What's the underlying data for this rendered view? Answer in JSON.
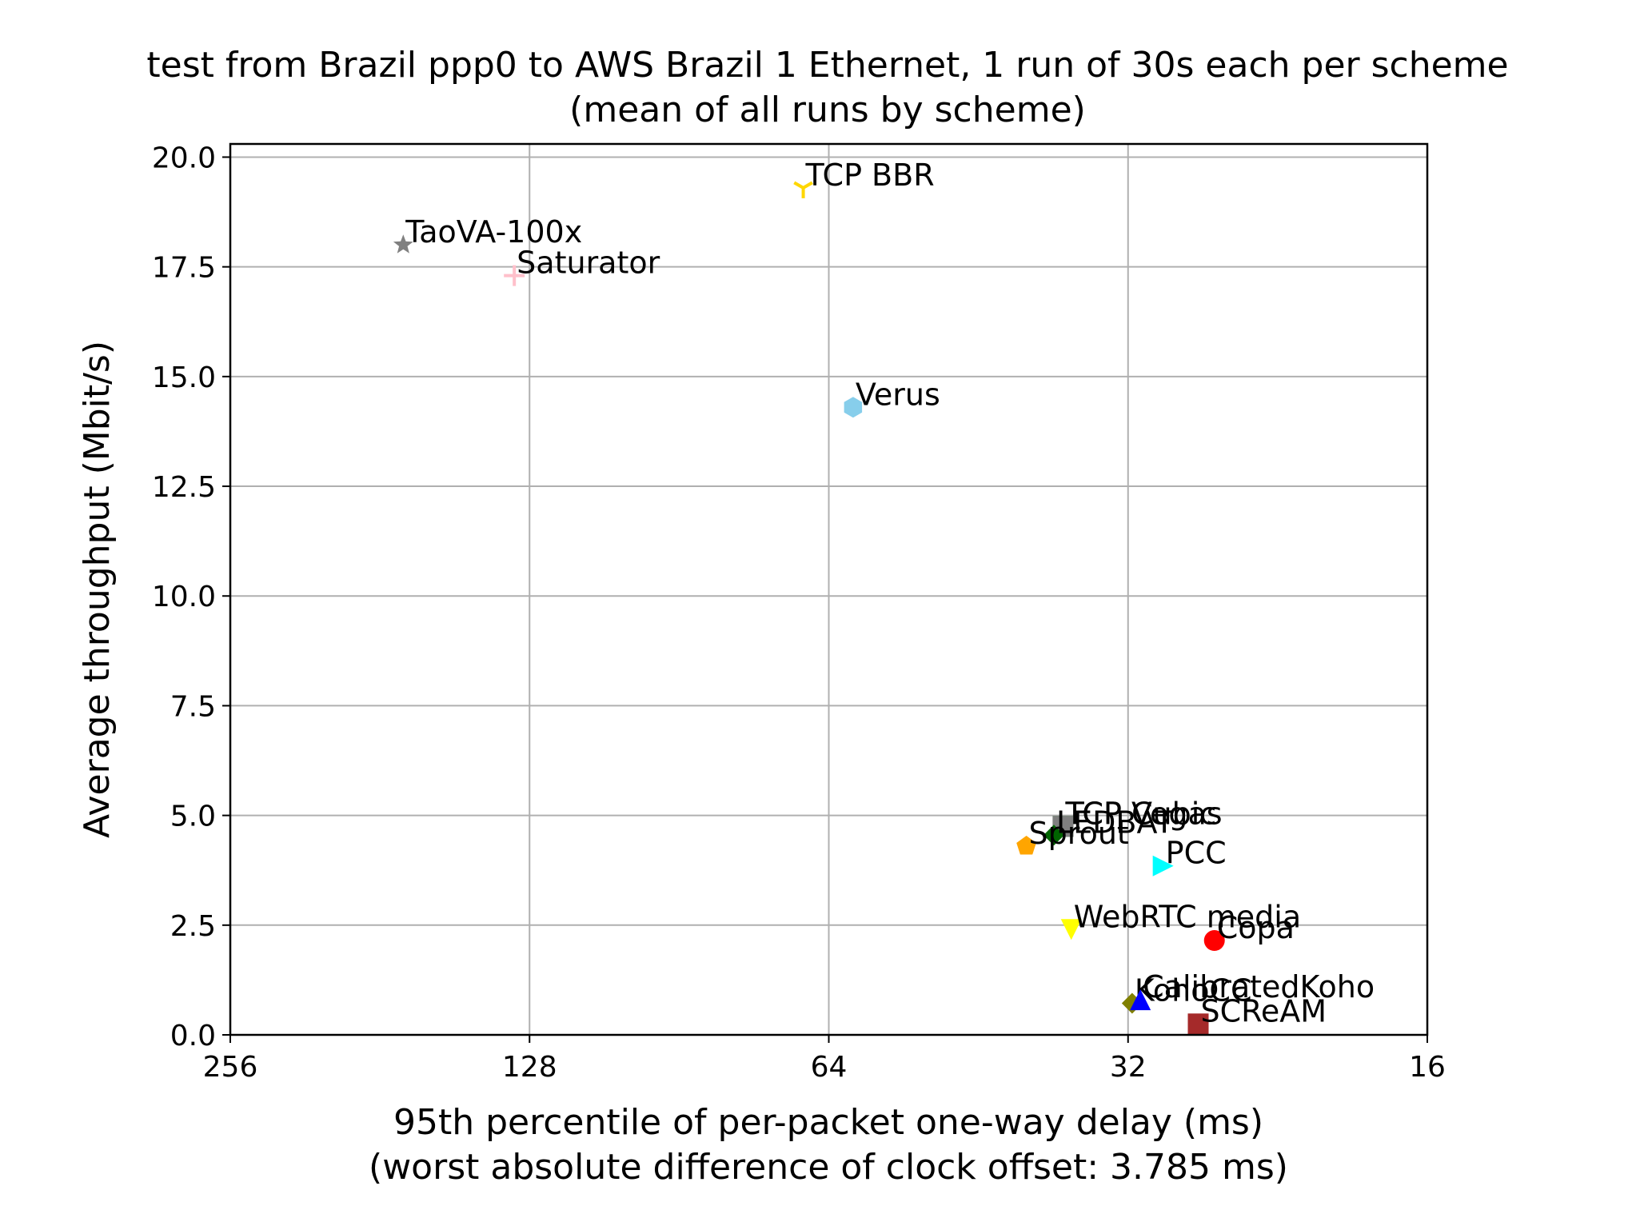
{
  "chart_data": {
    "type": "scatter",
    "title": "test from Brazil ppp0 to AWS Brazil 1 Ethernet, 1 run of 30s each per scheme",
    "subtitle": "(mean of all runs by scheme)",
    "xlabel": "95th percentile of per-packet one-way delay (ms)",
    "xlabel_sub": "(worst absolute difference of clock offset: 3.785 ms)",
    "ylabel": "Average throughput (Mbit/s)",
    "x_scale": "log2",
    "x_inverted": true,
    "xlim": [
      256,
      16
    ],
    "ylim": [
      0,
      20.3
    ],
    "x_ticks": [
      256,
      128,
      64,
      32,
      16
    ],
    "x_tick_labels": [
      "256",
      "128",
      "64",
      "32",
      "16"
    ],
    "y_ticks": [
      0,
      2.5,
      5,
      7.5,
      10,
      12.5,
      15,
      17.5,
      20
    ],
    "y_tick_labels": [
      "0.0",
      "2.5",
      "5.0",
      "7.5",
      "10.0",
      "12.5",
      "15.0",
      "17.5",
      "20.0"
    ],
    "grid": true,
    "points": [
      {
        "label": "TCP BBR",
        "x": 67.9,
        "y": 19.3,
        "color": "#FFD700",
        "marker": "tri"
      },
      {
        "label": "TaoVA-100x",
        "x": 171.5,
        "y": 18.0,
        "color": "#808080",
        "marker": "star"
      },
      {
        "label": "Saturator",
        "x": 132.6,
        "y": 17.3,
        "color": "#FFC0CB",
        "marker": "plus"
      },
      {
        "label": "Verus",
        "x": 60.5,
        "y": 14.3,
        "color": "#87CEEB",
        "marker": "hexagon"
      },
      {
        "label": "TCP Vegas",
        "x": 37.2,
        "y": 4.75,
        "color": "#006400",
        "marker": "square"
      },
      {
        "label": "TCP Cubic",
        "x": 37.2,
        "y": 4.75,
        "color": "#808080",
        "marker": "square"
      },
      {
        "label": "LEDBAT",
        "x": 38.0,
        "y": 4.55,
        "color": "#006400",
        "marker": "diamond"
      },
      {
        "label": "Sprout",
        "x": 40.5,
        "y": 4.3,
        "color": "#FFA500",
        "marker": "pentagon"
      },
      {
        "label": "PCC",
        "x": 29.5,
        "y": 3.85,
        "color": "#00FFFF",
        "marker": "tri-right"
      },
      {
        "label": "WebRTC media",
        "x": 36.5,
        "y": 2.4,
        "color": "#FFFF00",
        "marker": "tri-down"
      },
      {
        "label": "Copa",
        "x": 26.2,
        "y": 2.15,
        "color": "#FF0000",
        "marker": "circle"
      },
      {
        "label": "KohoCC",
        "x": 31.7,
        "y": 0.72,
        "color": "#808000",
        "marker": "diamond"
      },
      {
        "label": "CalibratedKoho",
        "x": 31.1,
        "y": 0.8,
        "color": "#0000FF",
        "marker": "triangle"
      },
      {
        "label": "SCReAM",
        "x": 27.2,
        "y": 0.25,
        "color": "#A52A2A",
        "marker": "square"
      }
    ]
  }
}
